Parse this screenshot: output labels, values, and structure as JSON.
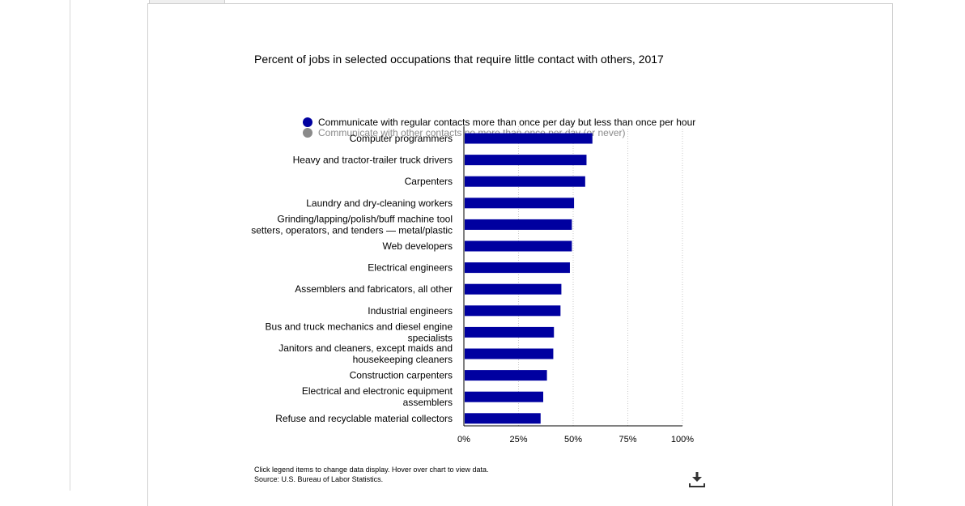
{
  "chart_data": {
    "type": "bar",
    "orientation": "horizontal",
    "title": "Percent of jobs in selected occupations that require little contact with others, 2017",
    "categories": [
      "Computer programmers",
      "Heavy and tractor-trailer truck drivers",
      "Carpenters",
      "Laundry and dry-cleaning workers",
      "Grinding/lapping/polish/buff machine tool setters, operators, and tenders — metal/plastic",
      "Web developers",
      "Electrical engineers",
      "Assemblers and fabricators, all other",
      "Industrial engineers",
      "Bus and truck mechanics and diesel engine specialists",
      "Janitors and cleaners, except maids and housekeeping cleaners",
      "Construction carpenters",
      "Electrical and electronic equipment assemblers",
      "Refuse and recyclable material collectors"
    ],
    "category_lines": [
      [
        "Computer programmers"
      ],
      [
        "Heavy and tractor-trailer truck drivers"
      ],
      [
        "Carpenters"
      ],
      [
        "Laundry and dry-cleaning workers"
      ],
      [
        "Grinding/lapping/polish/buff machine tool",
        "setters, operators, and tenders — metal/plastic"
      ],
      [
        "Web developers"
      ],
      [
        "Electrical engineers"
      ],
      [
        "Assemblers and fabricators, all other"
      ],
      [
        "Industrial engineers"
      ],
      [
        "Bus and truck mechanics and diesel engine",
        "specialists"
      ],
      [
        "Janitors and cleaners, except maids and",
        "housekeeping cleaners"
      ],
      [
        "Construction carpenters"
      ],
      [
        "Electrical and electronic equipment",
        "assemblers"
      ],
      [
        "Refuse and recyclable material collectors"
      ]
    ],
    "series": [
      {
        "name": "Communicate with regular contacts more than once per day but less than once per hour",
        "color": "#0000a0",
        "values": [
          58.8,
          56.1,
          55.5,
          50.4,
          49.4,
          49.4,
          48.5,
          44.6,
          44.2,
          41.2,
          40.9,
          38.0,
          36.3,
          35.1
        ]
      }
    ],
    "xlim": [
      0,
      100
    ],
    "xticks": [
      "0%",
      "25%",
      "50%",
      "75%",
      "100%"
    ],
    "xtick_values": [
      0,
      25,
      50,
      75,
      100
    ],
    "grid": true
  },
  "legend": {
    "items": [
      {
        "label": "Communicate with regular contacts more than once per day but less than once per hour",
        "color": "#0000a0"
      },
      {
        "label": "Communicate with other contacts no more than once per day (or never)",
        "color": "#8a8a8a"
      }
    ]
  },
  "footer": {
    "note": "Click legend items to change data display. Hover over chart to view data.",
    "source": "Source: U.S. Bureau of Labor Statistics."
  },
  "icons": {
    "download": "download-icon"
  }
}
